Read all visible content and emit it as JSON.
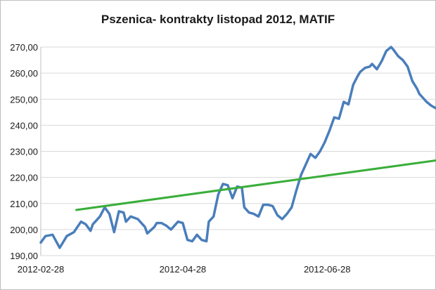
{
  "chart_data": {
    "type": "line",
    "title": "Pszenica- kontrakty listopad 2012, MATIF",
    "xlabel": "",
    "ylabel": "",
    "ylim": [
      190,
      270
    ],
    "yticks": [
      190,
      200,
      210,
      220,
      230,
      240,
      250,
      260,
      270
    ],
    "ytick_labels": [
      "190,00",
      "200,00",
      "210,00",
      "220,00",
      "230,00",
      "240,00",
      "250,00",
      "260,00",
      "270,00"
    ],
    "xlim": [
      "2012-02-28",
      "2012-08-13"
    ],
    "xticks": [
      "2012-02-28",
      "2012-04-28",
      "2012-06-28"
    ],
    "grid": "horizontal",
    "legend": "none",
    "colors": {
      "price": "#4a7ebb",
      "trend": "#3aae3a",
      "grid": "#d9d9d9"
    },
    "series": [
      {
        "x": [
          "2012-02-28",
          "2012-03-01",
          "2012-03-04",
          "2012-03-07",
          "2012-03-10",
          "2012-03-11",
          "2012-03-13",
          "2012-03-16",
          "2012-03-18",
          "2012-03-20",
          "2012-03-21",
          "2012-03-24",
          "2012-03-26",
          "2012-03-28",
          "2012-03-30",
          "2012-04-01",
          "2012-04-03",
          "2012-04-04",
          "2012-04-06",
          "2012-04-09",
          "2012-04-10",
          "2012-04-12",
          "2012-04-13",
          "2012-04-16",
          "2012-04-17",
          "2012-04-19",
          "2012-04-21",
          "2012-04-23",
          "2012-04-25",
          "2012-04-26",
          "2012-04-28",
          "2012-04-30",
          "2012-05-02",
          "2012-05-04",
          "2012-05-06",
          "2012-05-08",
          "2012-05-09",
          "2012-05-11",
          "2012-05-13",
          "2012-05-15",
          "2012-05-17",
          "2012-05-19",
          "2012-05-21",
          "2012-05-23",
          "2012-05-24",
          "2012-05-26",
          "2012-05-28",
          "2012-05-30",
          "2012-06-01",
          "2012-06-03",
          "2012-06-05",
          "2012-06-07",
          "2012-06-09",
          "2012-06-11",
          "2012-06-13",
          "2012-06-15",
          "2012-06-17",
          "2012-06-19",
          "2012-06-21",
          "2012-06-23",
          "2012-06-25",
          "2012-06-27",
          "2012-06-29",
          "2012-07-01",
          "2012-07-03",
          "2012-07-05",
          "2012-07-07",
          "2012-07-09",
          "2012-07-11",
          "2012-07-12",
          "2012-07-14",
          "2012-07-16",
          "2012-07-17",
          "2012-07-19",
          "2012-07-21",
          "2012-07-23",
          "2012-07-25",
          "2012-07-26",
          "2012-07-28",
          "2012-07-30",
          "2012-08-01",
          "2012-08-03",
          "2012-08-05",
          "2012-08-06",
          "2012-08-07",
          "2012-08-09",
          "2012-08-11",
          "2012-08-13"
        ],
        "values": [
          195,
          197.5,
          198,
          193,
          197.5,
          198,
          199,
          203,
          202,
          199.5,
          202,
          205,
          208.5,
          206,
          199,
          207,
          206.5,
          203,
          205,
          204,
          203,
          201,
          198.5,
          201,
          202.5,
          202.5,
          201.5,
          200,
          202,
          203,
          202.5,
          196,
          195.5,
          198,
          196,
          195.5,
          203,
          205,
          213.5,
          217.5,
          217,
          212,
          216.5,
          216,
          208.5,
          206.5,
          206,
          205,
          209.5,
          209.5,
          209,
          205.5,
          204,
          206,
          208.5,
          215,
          221,
          225,
          229,
          227.5,
          230,
          233.5,
          238,
          243,
          242.5,
          249,
          248,
          255.5,
          259,
          260.5,
          262,
          262.5,
          263.5,
          261.5,
          264.5,
          268.5,
          270,
          269,
          266.5,
          265,
          262.5,
          257,
          254,
          252,
          251,
          249,
          247.5,
          246.5
        ]
      },
      {
        "x": [
          "2012-03-14",
          "2012-08-13"
        ],
        "values": [
          207.5,
          226.5
        ]
      }
    ]
  }
}
